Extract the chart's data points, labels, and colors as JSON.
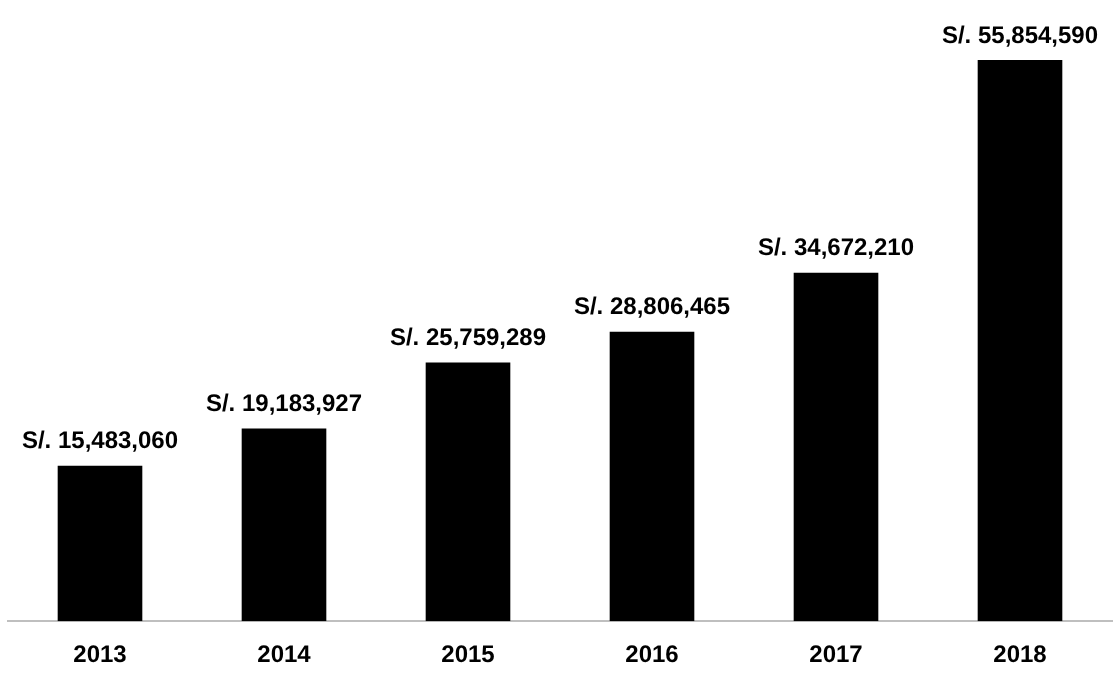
{
  "chart_data": {
    "type": "bar",
    "categories": [
      "2013",
      "2014",
      "2015",
      "2016",
      "2017",
      "2018"
    ],
    "values": [
      15483060,
      19183927,
      25759289,
      28806465,
      34672210,
      55854590
    ],
    "value_labels": [
      "S/. 15,483,060",
      "S/. 19,183,927",
      "S/. 25,759,289",
      "S/. 28,806,465",
      "S/. 34,672,210",
      "S/. 55,854,590"
    ],
    "color": "#000000",
    "grid": false,
    "legend": false
  }
}
